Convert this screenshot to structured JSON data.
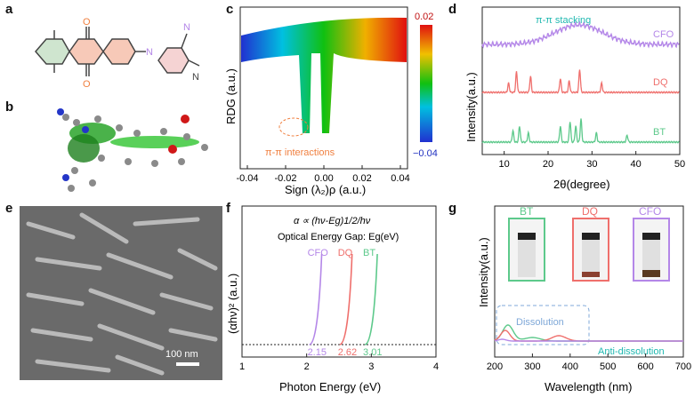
{
  "panels": {
    "a": "a",
    "b": "b",
    "c": "c",
    "d": "d",
    "e": "e",
    "f": "f",
    "g": "g"
  },
  "panel_a": {
    "atom_labels": [
      "O",
      "O",
      "N",
      "N",
      "N"
    ]
  },
  "panel_c": {
    "ylabel": "RDG (a.u.)",
    "xlabel": "Sign (λ₂)ρ (a.u.)",
    "xticks": [
      "-0.04",
      "-0.02",
      "0.00",
      "0.02",
      "0.04"
    ],
    "colorbar_max": "0.02",
    "colorbar_min": "−0.04",
    "annotation": "π-π interactions"
  },
  "panel_d": {
    "ylabel": "Intensity(a.u.)",
    "xlabel": "2θ(degree)",
    "xticks": [
      "10",
      "20",
      "30",
      "40",
      "50"
    ],
    "annotation": "π-π stacking",
    "series": [
      "CFO",
      "DQ",
      "BT"
    ],
    "colors": {
      "CFO": "#b487e8",
      "DQ": "#ef6f6c",
      "BT": "#5dc98b"
    }
  },
  "panel_e": {
    "scalebar": "100 nm"
  },
  "panel_f": {
    "formula": "α ∝ (hν-Eg)1/2/hν",
    "subtitle": "Optical Energy Gap: Eg(eV)",
    "ylabel": "(αhν)² (a.u.)",
    "xlabel": "Photon Energy (eV)",
    "xticks": [
      "1",
      "2",
      "3",
      "4"
    ],
    "series_labels": [
      "CFO",
      "DQ",
      "BT"
    ],
    "gap_values": [
      "2.15",
      "2.62",
      "3.01"
    ]
  },
  "panel_g": {
    "ylabel": "Intensity(a.u.)",
    "xlabel": "Wavelength (nm)",
    "xticks": [
      "200",
      "300",
      "400",
      "500",
      "600",
      "700"
    ],
    "vial_labels": [
      "BT",
      "DQ",
      "CFO"
    ],
    "dissolution": "Dissolution",
    "anti_dissolution": "Anti-dissolution"
  },
  "chart_data": [
    {
      "type": "line",
      "panel": "d",
      "xlabel": "2θ(degree)",
      "ylabel": "Intensity(a.u.)",
      "xlim": [
        5,
        50
      ],
      "series": [
        {
          "name": "CFO",
          "peaks": [
            {
              "x": 27,
              "h": 1.0
            }
          ],
          "broad": true
        },
        {
          "name": "DQ",
          "peaks": [
            {
              "x": 11,
              "h": 0.4
            },
            {
              "x": 12.8,
              "h": 0.9
            },
            {
              "x": 16,
              "h": 0.7
            },
            {
              "x": 22.8,
              "h": 0.6
            },
            {
              "x": 24.8,
              "h": 0.5
            },
            {
              "x": 27.2,
              "h": 1.0
            },
            {
              "x": 32.2,
              "h": 0.4
            }
          ]
        },
        {
          "name": "BT",
          "peaks": [
            {
              "x": 12,
              "h": 0.5
            },
            {
              "x": 13.5,
              "h": 0.7
            },
            {
              "x": 15.5,
              "h": 0.4
            },
            {
              "x": 22.8,
              "h": 0.7
            },
            {
              "x": 25,
              "h": 0.9
            },
            {
              "x": 26.3,
              "h": 0.7
            },
            {
              "x": 27.5,
              "h": 1.0
            },
            {
              "x": 31,
              "h": 0.4
            },
            {
              "x": 38,
              "h": 0.3
            }
          ]
        }
      ]
    },
    {
      "type": "line",
      "panel": "f",
      "xlabel": "Photon Energy (eV)",
      "ylabel": "(αhν)² (a.u.)",
      "xlim": [
        1,
        4
      ],
      "series": [
        {
          "name": "CFO",
          "onset": 2.15
        },
        {
          "name": "DQ",
          "onset": 2.62
        },
        {
          "name": "BT",
          "onset": 3.01
        }
      ]
    },
    {
      "type": "line",
      "panel": "g",
      "xlabel": "Wavelength (nm)",
      "ylabel": "Intensity(a.u.)",
      "xlim": [
        200,
        700
      ],
      "series": [
        {
          "name": "BT",
          "peak_x": 235
        },
        {
          "name": "DQ",
          "peak_x": 230
        },
        {
          "name": "CFO",
          "peak_x": 0
        }
      ]
    }
  ]
}
